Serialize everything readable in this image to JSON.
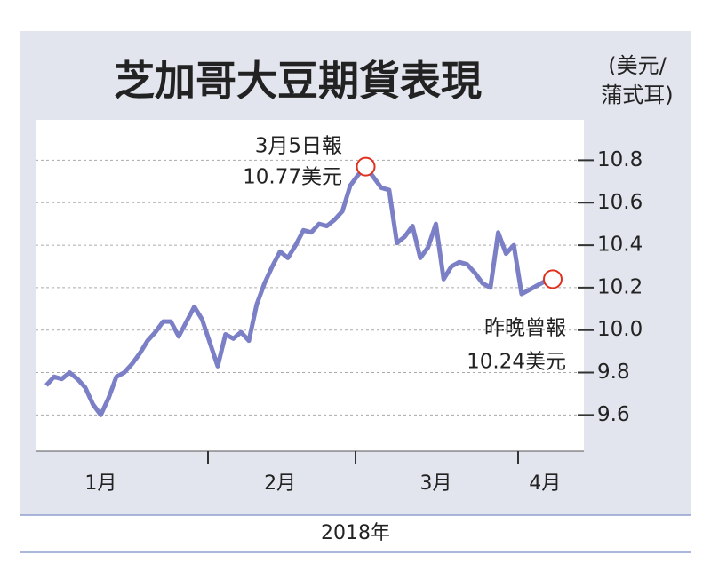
{
  "chart_data": {
    "type": "line",
    "title": "芝加哥大豆期貨表現",
    "unit_label": [
      "(美元/",
      "蒲式耳)"
    ],
    "x_label": "2018年",
    "categories": [
      null,
      null,
      null,
      null,
      null,
      null,
      null,
      "1月",
      null,
      null,
      null,
      null,
      null,
      null,
      null,
      null,
      null,
      null,
      null,
      null,
      null,
      null,
      null,
      null,
      null,
      null,
      null,
      null,
      null,
      null,
      "2月",
      null,
      null,
      null,
      null,
      null,
      null,
      null,
      null,
      null,
      null,
      null,
      null,
      null,
      null,
      null,
      null,
      null,
      null,
      null,
      "3月",
      null,
      null,
      null,
      null,
      null,
      null,
      null,
      null,
      null,
      null,
      null,
      null,
      null,
      "4月",
      null
    ],
    "series": [
      {
        "color": "#7b7fc6",
        "values": [
          9.74,
          9.78,
          9.77,
          9.8,
          9.77,
          9.73,
          9.65,
          9.6,
          9.68,
          9.78,
          9.8,
          9.84,
          9.89,
          9.95,
          9.99,
          10.04,
          10.04,
          9.97,
          10.04,
          10.11,
          10.05,
          9.94,
          9.83,
          9.98,
          9.96,
          9.99,
          9.95,
          10.12,
          10.22,
          10.3,
          10.37,
          10.34,
          10.4,
          10.47,
          10.46,
          10.5,
          10.49,
          10.52,
          10.56,
          10.68,
          10.73,
          10.77,
          10.72,
          10.67,
          10.66,
          10.41,
          10.44,
          10.49,
          10.34,
          10.39,
          10.5,
          10.24,
          10.3,
          10.32,
          10.31,
          10.27,
          10.22,
          10.2,
          10.46,
          10.36,
          10.4,
          10.17,
          10.19,
          10.21,
          10.23,
          10.24
        ]
      }
    ],
    "annotations": [
      [
        "3月5日報",
        "10.77美元"
      ],
      [
        "昨晚曾報",
        "10.24美元"
      ]
    ],
    "ylim": [
      9.43,
      10.99
    ],
    "yticks": [
      9.6,
      9.8,
      {
        "value": 10.0,
        "label": "10.0"
      },
      10.2,
      10.4,
      10.6,
      10.8
    ],
    "grid": true
  }
}
